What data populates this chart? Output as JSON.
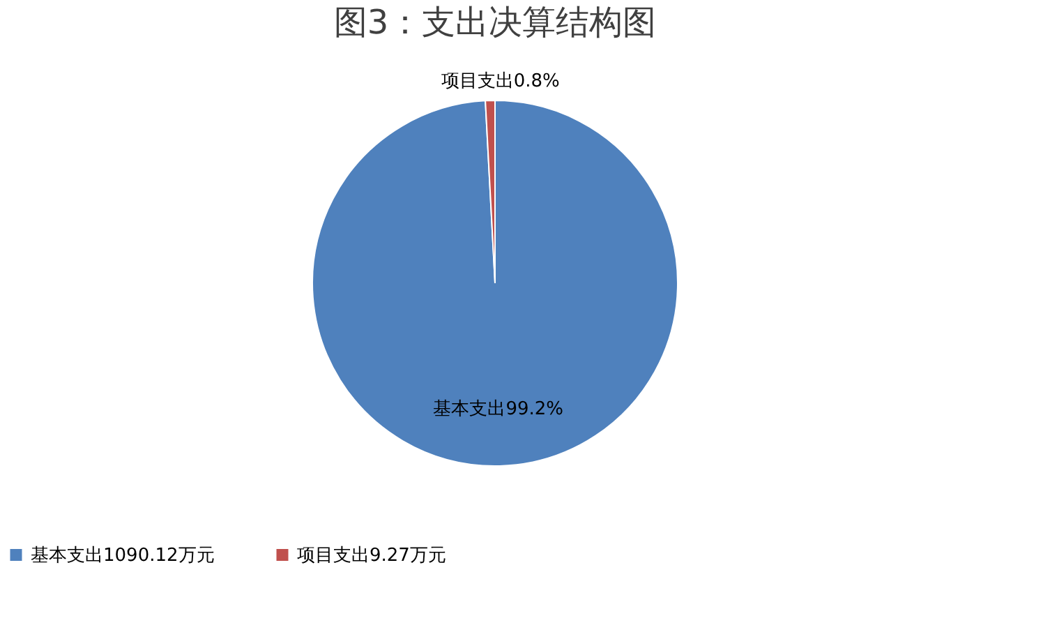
{
  "chart_data": {
    "type": "pie",
    "title": "图3：支出决算结构图",
    "categories": [
      "基本支出1090.12万元",
      "项目支出9.27万元"
    ],
    "values": [
      1090.12,
      9.27
    ],
    "colors": [
      "#4f81bd",
      "#c0504d"
    ],
    "value_labels": [
      "基本支出99.2%",
      "项目支出0.8%"
    ],
    "legend": "bottom"
  }
}
